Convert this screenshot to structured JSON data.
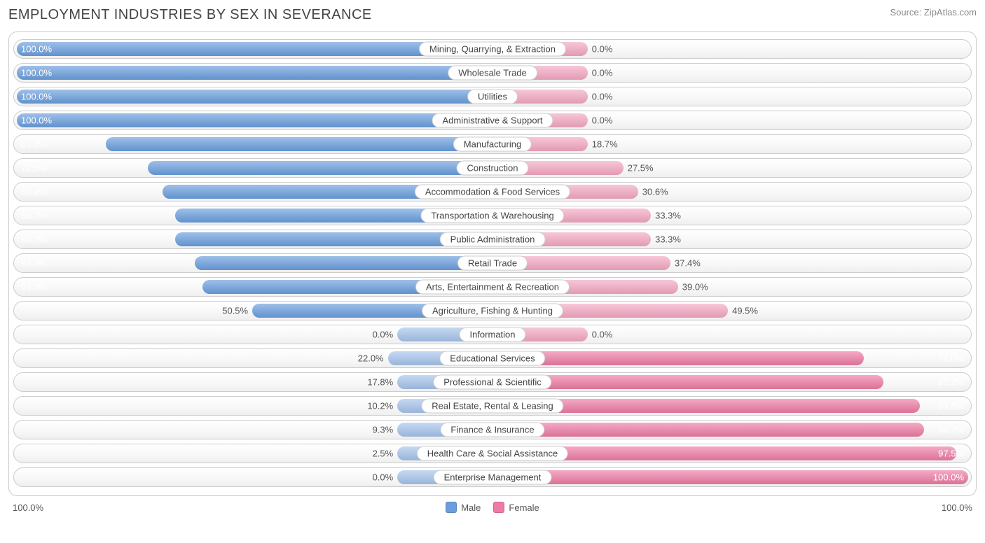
{
  "title": "EMPLOYMENT INDUSTRIES BY SEX IN SEVERANCE",
  "source": "Source: ZipAtlas.com",
  "chart": {
    "type": "diverging-bar",
    "male_color": "#6a9ede",
    "male_color_light": "#a6c4ec",
    "female_color": "#ee7ba5",
    "female_color_light": "#f4a8c3",
    "row_border_color": "#cccccc",
    "row_bg_top": "#ffffff",
    "row_bg_bottom": "#efefef",
    "text_color_inside": "#ffffff",
    "text_color_outside": "#555555",
    "min_bar_pct": 20,
    "label_inside_threshold": 55,
    "axis_left": "100.0%",
    "axis_right": "100.0%",
    "legend": [
      {
        "label": "Male",
        "color": "#6a9ede"
      },
      {
        "label": "Female",
        "color": "#ee7ba5"
      }
    ],
    "rows": [
      {
        "label": "Mining, Quarrying, & Extraction",
        "male": 100.0,
        "female": 0.0
      },
      {
        "label": "Wholesale Trade",
        "male": 100.0,
        "female": 0.0
      },
      {
        "label": "Utilities",
        "male": 100.0,
        "female": 0.0
      },
      {
        "label": "Administrative & Support",
        "male": 100.0,
        "female": 0.0
      },
      {
        "label": "Manufacturing",
        "male": 81.3,
        "female": 18.7
      },
      {
        "label": "Construction",
        "male": 72.5,
        "female": 27.5
      },
      {
        "label": "Accommodation & Food Services",
        "male": 69.4,
        "female": 30.6
      },
      {
        "label": "Transportation & Warehousing",
        "male": 66.7,
        "female": 33.3
      },
      {
        "label": "Public Administration",
        "male": 66.7,
        "female": 33.3
      },
      {
        "label": "Retail Trade",
        "male": 62.6,
        "female": 37.4
      },
      {
        "label": "Arts, Entertainment & Recreation",
        "male": 61.0,
        "female": 39.0
      },
      {
        "label": "Agriculture, Fishing & Hunting",
        "male": 50.5,
        "female": 49.5
      },
      {
        "label": "Information",
        "male": 0.0,
        "female": 0.0
      },
      {
        "label": "Educational Services",
        "male": 22.0,
        "female": 78.0
      },
      {
        "label": "Professional & Scientific",
        "male": 17.8,
        "female": 82.2
      },
      {
        "label": "Real Estate, Rental & Leasing",
        "male": 10.2,
        "female": 89.8
      },
      {
        "label": "Finance & Insurance",
        "male": 9.3,
        "female": 90.7
      },
      {
        "label": "Health Care & Social Assistance",
        "male": 2.5,
        "female": 97.5
      },
      {
        "label": "Enterprise Management",
        "male": 0.0,
        "female": 100.0
      }
    ]
  }
}
